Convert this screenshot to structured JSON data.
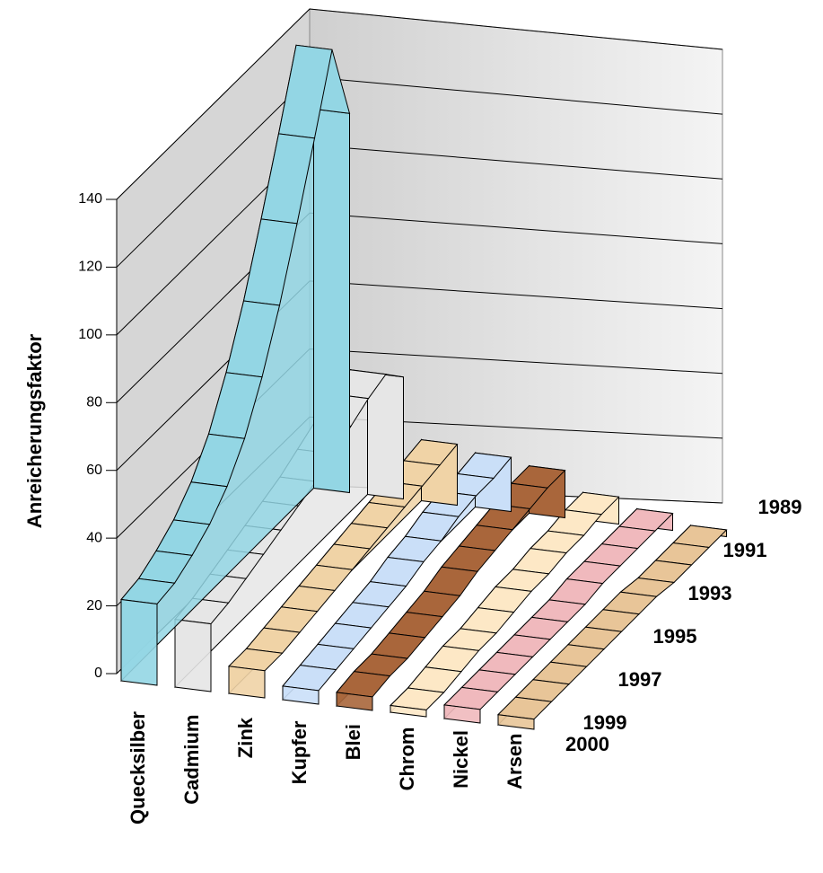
{
  "chart_data": {
    "type": "ribbon3d",
    "ylabel": "Anreicherungsfaktor",
    "x": [
      "1989",
      null,
      "1991",
      null,
      "1993",
      null,
      "1995",
      null,
      "1997",
      null,
      "1999",
      "2000"
    ],
    "ylim": [
      0,
      140
    ],
    "yticks": [
      0,
      20,
      40,
      60,
      80,
      100,
      120,
      140
    ],
    "grid": true,
    "series": [
      {
        "name": "Quecksilber",
        "color": "#93d6e4",
        "values": [
          112,
          136,
          115,
          95,
          76,
          60,
          47,
          38,
          32,
          28,
          25,
          24
        ]
      },
      {
        "name": "Cadmium",
        "color": "#e6e6e6",
        "values": [
          36,
          42,
          40,
          37,
          34,
          31,
          29,
          27,
          25,
          23,
          21,
          20
        ]
      },
      {
        "name": "Zink",
        "color": "#f0d3a6",
        "values": [
          18,
          17,
          16,
          15,
          14,
          13,
          12,
          11,
          10,
          9,
          8,
          8
        ]
      },
      {
        "name": "Kupfer",
        "color": "#cadff8",
        "values": [
          16,
          15,
          15,
          14,
          12,
          11,
          9,
          8,
          7,
          6,
          5,
          4
        ]
      },
      {
        "name": "Blei",
        "color": "#a9663b",
        "values": [
          14,
          14,
          13,
          12,
          11,
          10,
          8,
          7,
          6,
          5,
          5,
          4
        ]
      },
      {
        "name": "Chrom",
        "color": "#fde8c6",
        "values": [
          8,
          8,
          7,
          7,
          6,
          6,
          5,
          4,
          4,
          3,
          2,
          2
        ]
      },
      {
        "name": "Nickel",
        "color": "#f0b9bd",
        "values": [
          5,
          5,
          5,
          5,
          5,
          4,
          4,
          4,
          4,
          4,
          4,
          4
        ]
      },
      {
        "name": "Arsen",
        "color": "#e8c598",
        "values": [
          2,
          2,
          2,
          2,
          3,
          3,
          3,
          3,
          3,
          3,
          3,
          3
        ]
      }
    ]
  }
}
